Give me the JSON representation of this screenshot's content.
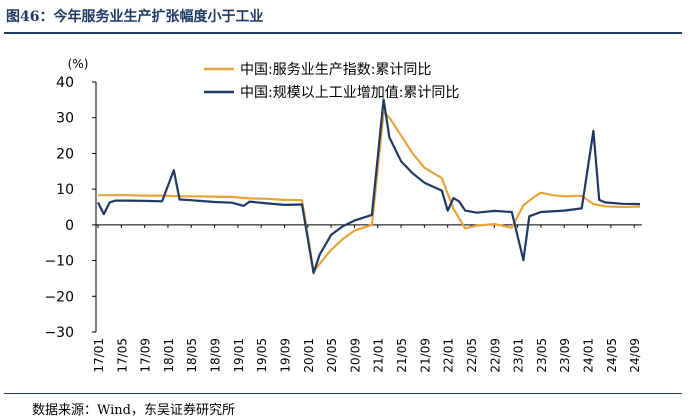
{
  "figure": {
    "title": "图46：今年服务业生产扩张幅度小于工业",
    "source": "数据来源：Wind，东吴证券研究所"
  },
  "colors": {
    "services": "#e8a33a",
    "industry": "#1f3864",
    "axis": "#000000",
    "rule": "#1f3864"
  },
  "chart_data": {
    "type": "line",
    "title": "今年服务业生产扩张幅度小于工业",
    "xlabel": "",
    "ylabel": "(%)",
    "ylim": [
      -30,
      40
    ],
    "yticks": [
      40,
      30,
      20,
      10,
      0,
      -10,
      -20,
      -30
    ],
    "x_tick_labels": [
      "17/01",
      "17/05",
      "17/09",
      "18/01",
      "18/05",
      "18/09",
      "19/01",
      "19/05",
      "19/09",
      "20/01",
      "20/05",
      "20/09",
      "21/01",
      "21/05",
      "21/09",
      "22/01",
      "22/05",
      "22/09",
      "23/01",
      "23/05",
      "23/09",
      "24/01",
      "24/05",
      "24/09"
    ],
    "grid": false,
    "legend_position": "top-center",
    "series": [
      {
        "name": "中国:服务业生产指数:累计同比",
        "color": "#e8a33a",
        "points": [
          [
            "17/01",
            8.3
          ],
          [
            "17/03",
            8.3
          ],
          [
            "17/06",
            8.3
          ],
          [
            "17/09",
            8.2
          ],
          [
            "17/12",
            8.2
          ],
          [
            "18/03",
            8.0
          ],
          [
            "18/06",
            8.0
          ],
          [
            "18/09",
            7.9
          ],
          [
            "18/12",
            7.8
          ],
          [
            "19/03",
            7.4
          ],
          [
            "19/06",
            7.3
          ],
          [
            "19/09",
            7.0
          ],
          [
            "19/12",
            6.9
          ],
          [
            "20/02",
            -13.0
          ],
          [
            "20/03",
            -11.0
          ],
          [
            "20/05",
            -7.0
          ],
          [
            "20/07",
            -4.0
          ],
          [
            "20/09",
            -1.6
          ],
          [
            "20/12",
            0.0
          ],
          [
            "21/02",
            31.5
          ],
          [
            "21/03",
            30.0
          ],
          [
            "21/05",
            25.0
          ],
          [
            "21/07",
            20.0
          ],
          [
            "21/09",
            16.0
          ],
          [
            "21/12",
            13.1
          ],
          [
            "22/02",
            4.5
          ],
          [
            "22/04",
            -1.0
          ],
          [
            "22/06",
            -0.2
          ],
          [
            "22/09",
            0.2
          ],
          [
            "22/12",
            -0.8
          ],
          [
            "23/02",
            5.5
          ],
          [
            "23/04",
            8.0
          ],
          [
            "23/05",
            9.0
          ],
          [
            "23/07",
            8.3
          ],
          [
            "23/09",
            8.0
          ],
          [
            "23/12",
            8.1
          ],
          [
            "24/02",
            5.8
          ],
          [
            "24/04",
            5.2
          ],
          [
            "24/07",
            5.0
          ],
          [
            "24/10",
            5.1
          ]
        ]
      },
      {
        "name": "中国:规模以上工业增加值:累计同比",
        "color": "#1f3864",
        "points": [
          [
            "17/01",
            6.3
          ],
          [
            "17/02",
            3.0
          ],
          [
            "17/03",
            6.3
          ],
          [
            "17/04",
            6.8
          ],
          [
            "17/06",
            6.8
          ],
          [
            "17/09",
            6.7
          ],
          [
            "17/12",
            6.6
          ],
          [
            "18/02",
            15.3
          ],
          [
            "18/03",
            7.1
          ],
          [
            "18/05",
            6.9
          ],
          [
            "18/09",
            6.4
          ],
          [
            "18/12",
            6.2
          ],
          [
            "19/02",
            5.3
          ],
          [
            "19/03",
            6.5
          ],
          [
            "19/06",
            6.0
          ],
          [
            "19/09",
            5.6
          ],
          [
            "19/12",
            5.7
          ],
          [
            "20/02",
            -13.5
          ],
          [
            "20/03",
            -8.4
          ],
          [
            "20/05",
            -2.8
          ],
          [
            "20/07",
            -0.4
          ],
          [
            "20/09",
            1.2
          ],
          [
            "20/12",
            2.8
          ],
          [
            "21/02",
            35.1
          ],
          [
            "21/03",
            24.5
          ],
          [
            "21/05",
            17.8
          ],
          [
            "21/07",
            14.4
          ],
          [
            "21/09",
            11.8
          ],
          [
            "21/12",
            9.6
          ],
          [
            "22/01",
            4.0
          ],
          [
            "22/02",
            7.5
          ],
          [
            "22/03",
            6.5
          ],
          [
            "22/04",
            4.0
          ],
          [
            "22/06",
            3.4
          ],
          [
            "22/09",
            3.9
          ],
          [
            "22/12",
            3.6
          ],
          [
            "23/02",
            -9.9
          ],
          [
            "23/03",
            2.4
          ],
          [
            "23/05",
            3.6
          ],
          [
            "23/09",
            4.0
          ],
          [
            "23/12",
            4.6
          ],
          [
            "24/02",
            26.3
          ],
          [
            "24/03",
            7.0
          ],
          [
            "24/04",
            6.3
          ],
          [
            "24/07",
            5.9
          ],
          [
            "24/10",
            5.8
          ]
        ]
      }
    ]
  }
}
